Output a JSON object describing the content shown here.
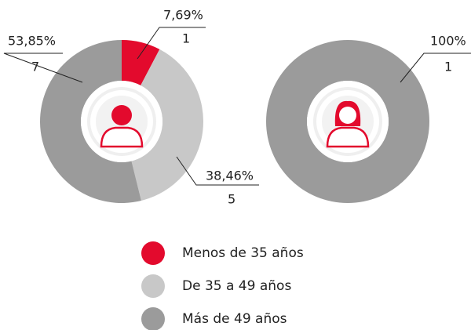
{
  "chart_data": [
    {
      "type": "pie",
      "donut": true,
      "categories": [
        "Menos de 35 años",
        "De 35 a 49 años",
        "Más de 49 años"
      ],
      "colors": [
        "#e30a2d",
        "#c8c8c8",
        "#9b9b9b"
      ],
      "values": [
        7.69,
        38.46,
        53.85
      ],
      "value_labels": [
        "7,69%",
        "38,46%",
        "53,85%"
      ],
      "counts": [
        1,
        5,
        7
      ]
    },
    {
      "type": "pie",
      "donut": true,
      "categories": [
        "Más de 49 años"
      ],
      "colors": [
        "#9b9b9b"
      ],
      "values": [
        100
      ],
      "value_labels": [
        "100%"
      ],
      "counts": [
        1
      ]
    }
  ]
}
